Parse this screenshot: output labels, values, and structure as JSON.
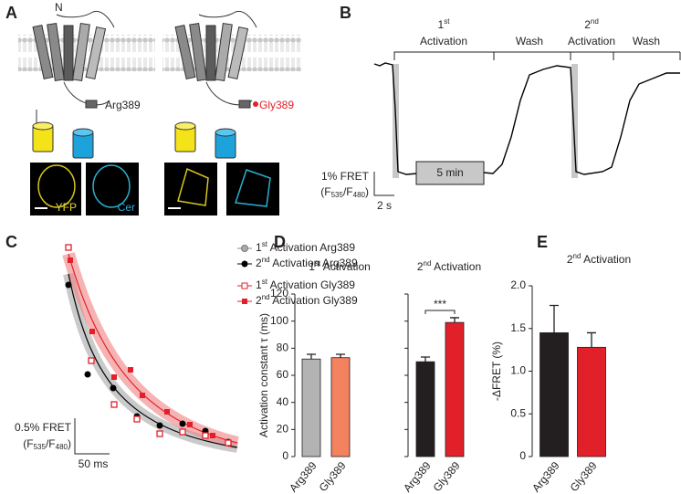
{
  "panel_labels": [
    "A",
    "B",
    "C",
    "D",
    "E"
  ],
  "panel_a": {
    "n_label": "N",
    "left_label": "Arg389",
    "right_label": "Gly389",
    "channel_1": "YFP",
    "channel_2": "Cer"
  },
  "panel_b": {
    "first_activation": [
      "1",
      "st",
      "Activation"
    ],
    "wash_1": "Wash",
    "second_activation": [
      "2",
      "nd",
      "Activation"
    ],
    "wash_2": "Wash",
    "time_box": "5 min",
    "scale_y": "1% FRET",
    "scale_y_unit": [
      "(F",
      "535",
      "/F",
      "480",
      ")"
    ],
    "scale_x": "2 s"
  },
  "panel_c": {
    "legend": [
      [
        "1",
        "st",
        " Activation Arg389"
      ],
      [
        "2",
        "nd",
        " Activation Arg389"
      ],
      [
        "1",
        "st",
        " Activation Gly389"
      ],
      [
        "2",
        "nd",
        " Activation Gly389"
      ]
    ],
    "scale_y": "0.5% FRET",
    "scale_y_unit": [
      "(F",
      "535",
      "/F",
      "480",
      ")"
    ],
    "scale_x": "50 ms"
  },
  "chart_data": [
    {
      "type": "bar",
      "title": [
        "1",
        "st",
        " Activation"
      ],
      "y_label": "Activation constant τ (ms)",
      "categories": [
        "Arg389",
        "Gly389"
      ],
      "values": [
        72,
        73
      ],
      "errors": [
        3.5,
        2.5
      ],
      "colors": [
        "#b3b3b3",
        "#f4825f"
      ],
      "ylim": [
        0,
        120
      ],
      "yticks": [
        0,
        20,
        40,
        60,
        80,
        100,
        120
      ]
    },
    {
      "type": "bar",
      "title": [
        "2",
        "nd",
        " Activation"
      ],
      "categories": [
        "Arg389",
        "Gly389"
      ],
      "values": [
        70,
        99
      ],
      "errors": [
        3.5,
        3.5
      ],
      "colors": [
        "#231f20",
        "#e2202a"
      ],
      "annotation": "***",
      "ylim": [
        0,
        120
      ],
      "yticks": [
        0,
        20,
        40,
        60,
        80,
        100,
        120
      ]
    },
    {
      "type": "bar",
      "title": [
        "2",
        "nd",
        " Activation"
      ],
      "y_label": "-ΔFRET (%)",
      "categories": [
        "Arg389",
        "Gly389"
      ],
      "values": [
        1.45,
        1.28
      ],
      "errors": [
        0.32,
        0.17
      ],
      "colors": [
        "#231f20",
        "#e2202a"
      ],
      "ylim": [
        0,
        2
      ],
      "yticks": [
        0,
        {
          "value": 0.5,
          "label": "0.5"
        },
        {
          "value": 1,
          "label": "1.0"
        },
        {
          "value": 1.5,
          "label": "1.5"
        },
        {
          "value": 2,
          "label": "2.0"
        }
      ]
    }
  ]
}
